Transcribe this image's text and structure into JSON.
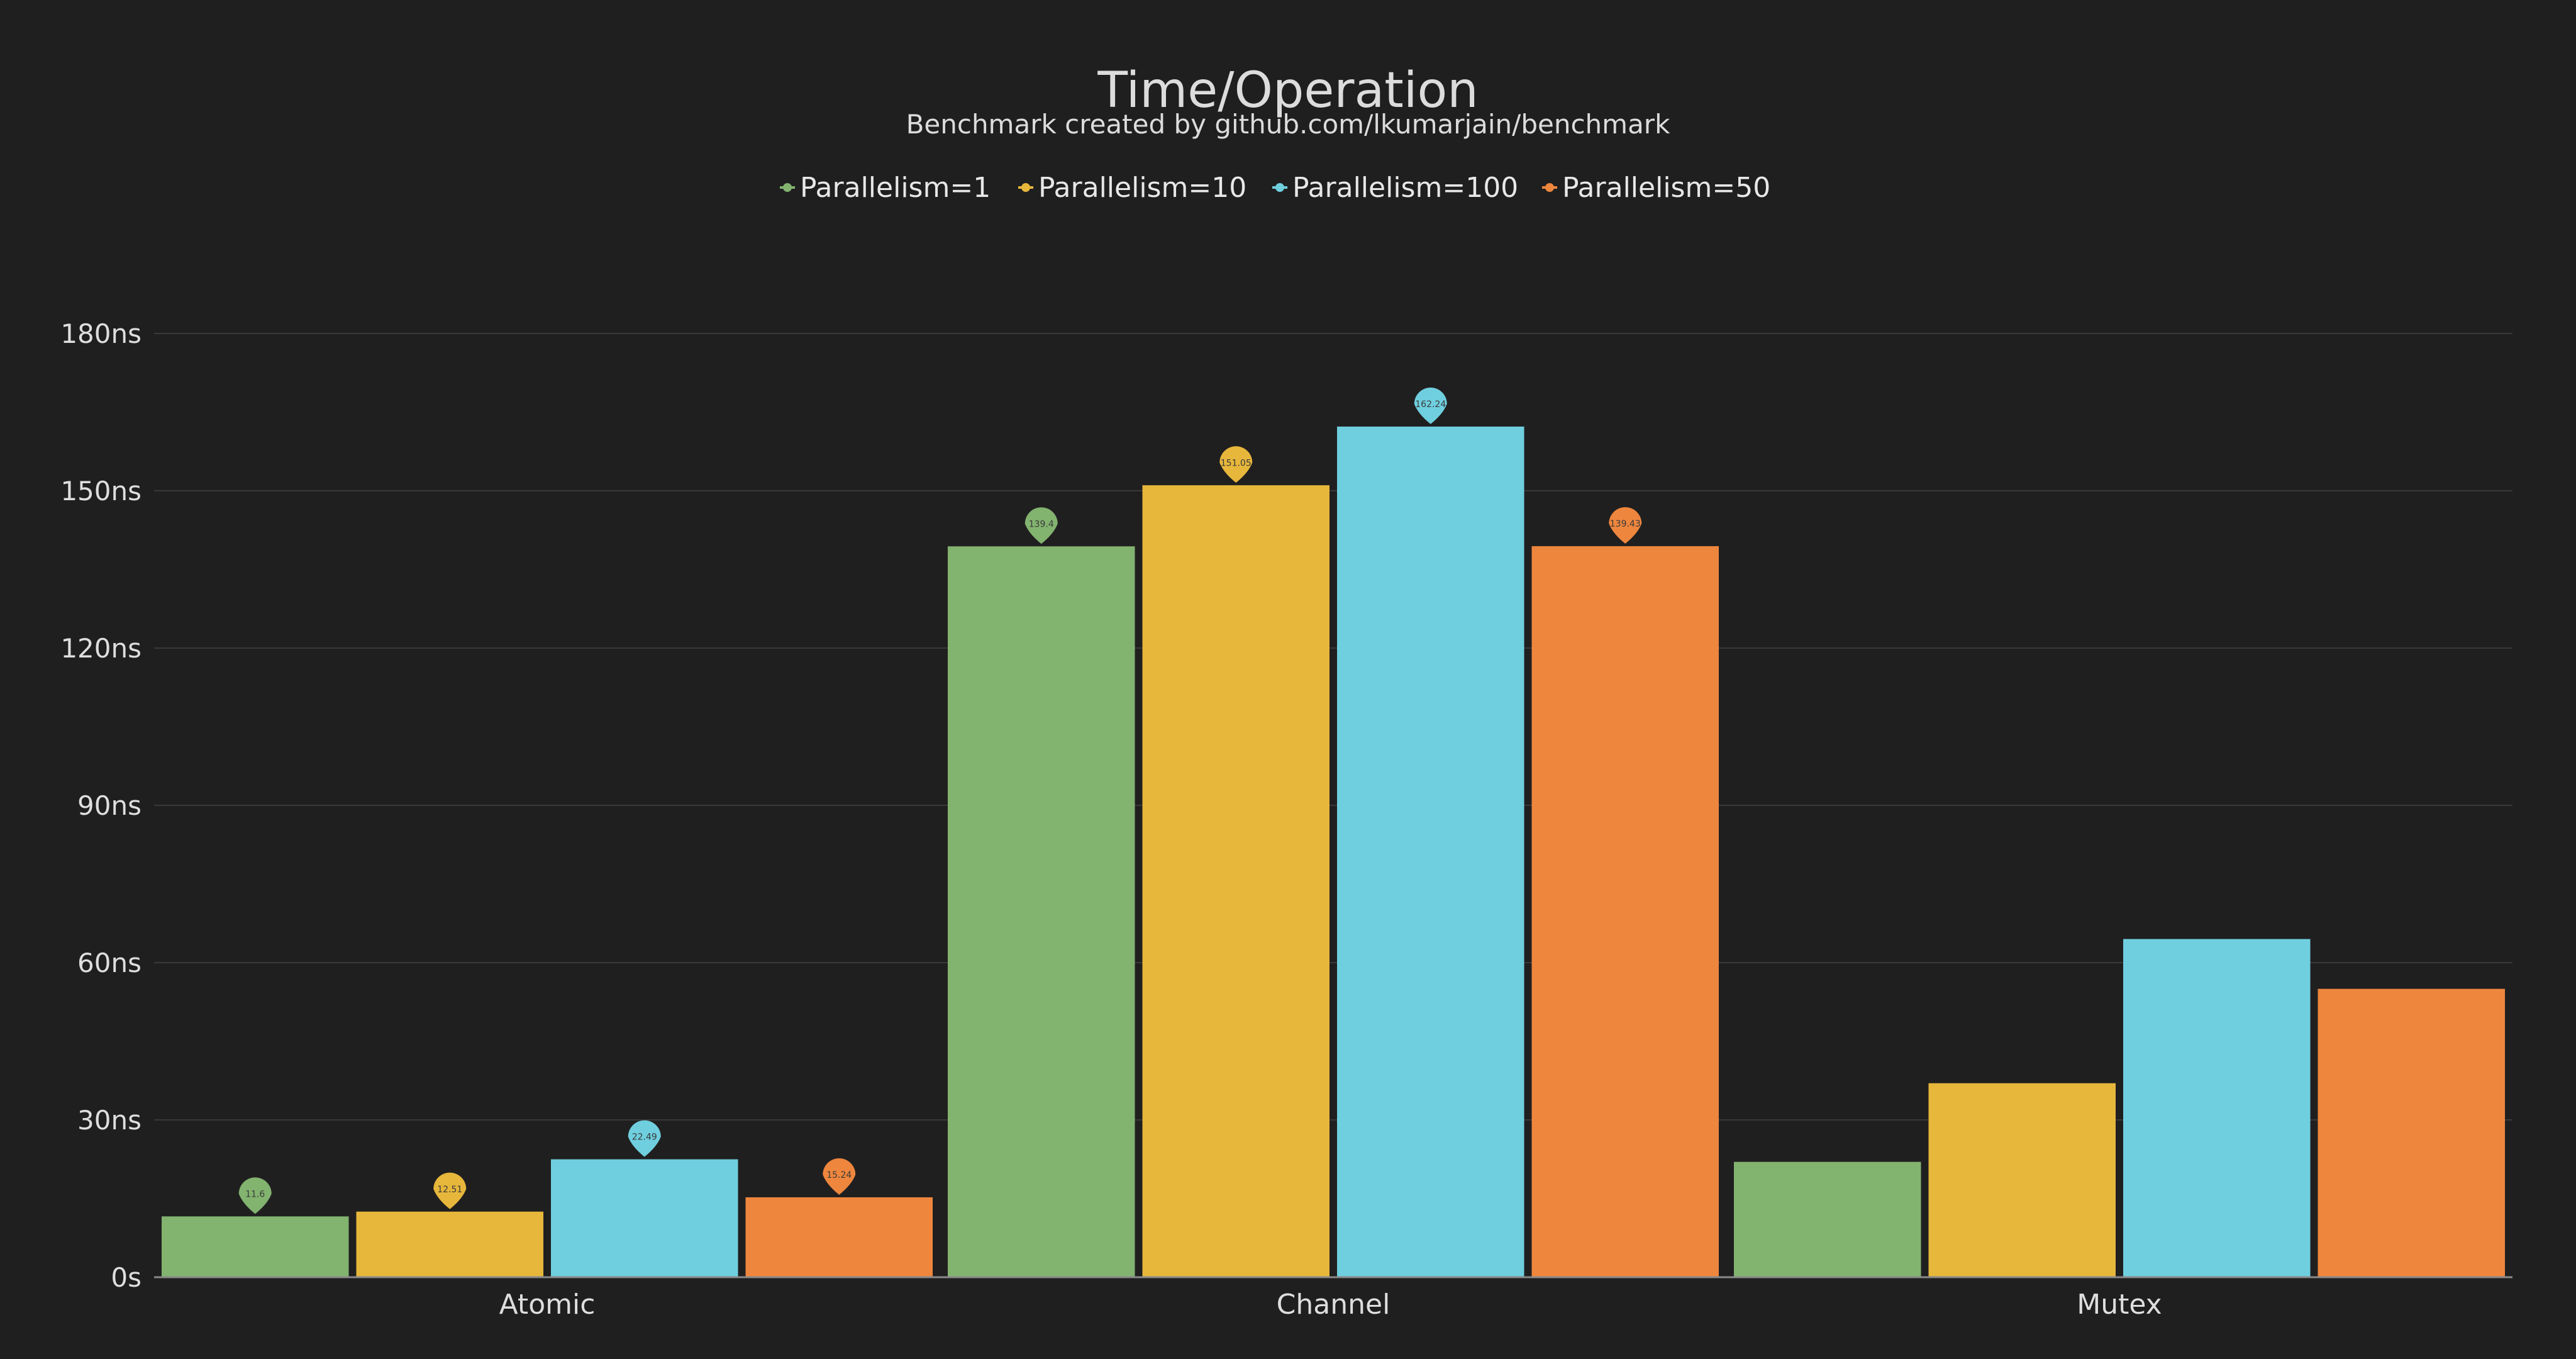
{
  "chart_data": {
    "type": "bar",
    "title": "Time/Operation",
    "subtitle": "Benchmark created by github.com/lkumarjain/benchmark",
    "xlabel": "",
    "ylabel": "",
    "categories": [
      "Atomic",
      "Channel",
      "Mutex"
    ],
    "series": [
      {
        "name": "Parallelism=1",
        "color": "#82b36f",
        "values": [
          11.6,
          139.4,
          22.0
        ],
        "labels": [
          "11.6",
          "139.4",
          ""
        ]
      },
      {
        "name": "Parallelism=10",
        "color": "#e7b73b",
        "values": [
          12.51,
          151.05,
          37.0
        ],
        "labels": [
          "12.51",
          "151.05",
          ""
        ]
      },
      {
        "name": "Parallelism=100",
        "color": "#6fcfdf",
        "values": [
          22.49,
          162.24,
          64.5
        ],
        "labels": [
          "22.49",
          "162.24",
          ""
        ]
      },
      {
        "name": "Parallelism=50",
        "color": "#ee863d",
        "values": [
          15.24,
          139.43,
          55.0
        ],
        "labels": [
          "15.24",
          "139.43",
          ""
        ]
      }
    ],
    "ylim": [
      0,
      180
    ],
    "yticks": [
      0,
      30,
      60,
      90,
      120,
      150,
      180
    ],
    "yticklabels": [
      "0s",
      "30ns",
      "60ns",
      "90ns",
      "120ns",
      "150ns",
      "180ns"
    ],
    "grid": true,
    "legend_position": "top-center",
    "background": "#201f20",
    "grid_color": "#3a393a",
    "axis_color": "#8a8a8a"
  }
}
